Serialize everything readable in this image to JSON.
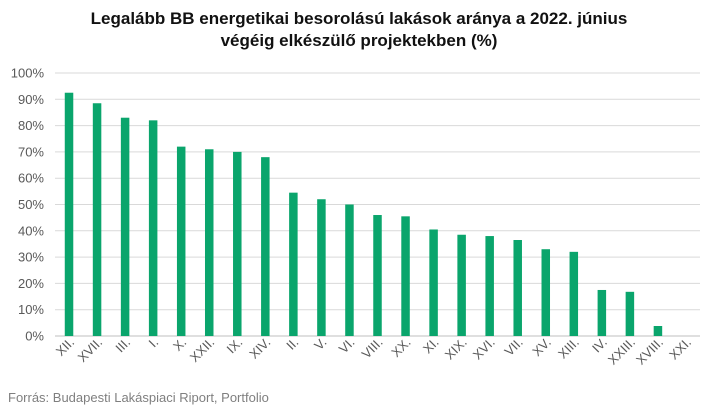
{
  "chart_data": {
    "type": "bar",
    "title_line1": "Legalább BB energetikai besorolású lakások aránya a 2022. június",
    "title_line2": "végéig elkészülő projektekben (%)",
    "categories": [
      "XII.",
      "XVII.",
      "III.",
      "I.",
      "X.",
      "XXII.",
      "IX.",
      "XIV.",
      "II.",
      "V.",
      "VI.",
      "VIII.",
      "XX.",
      "XI.",
      "XIX.",
      "XVI.",
      "VII.",
      "XV.",
      "XIII.",
      "IV.",
      "XXIII.",
      "XVIII.",
      "XXI."
    ],
    "values": [
      92.5,
      88.5,
      83,
      82,
      72,
      71,
      70,
      68,
      54.5,
      52,
      50,
      46,
      45.5,
      40.5,
      38.5,
      38,
      36.5,
      33,
      32,
      17.5,
      16.8,
      3.8,
      0
    ],
    "y_ticks": [
      "0%",
      "10%",
      "20%",
      "30%",
      "40%",
      "50%",
      "60%",
      "70%",
      "80%",
      "90%",
      "100%"
    ],
    "ylim": [
      0,
      100
    ],
    "grid": true,
    "bar_color": "#0aa56c",
    "grid_color": "#d9d9d9"
  },
  "source": "Forrás: Budapesti Lakáspiaci Riport, Portfolio"
}
